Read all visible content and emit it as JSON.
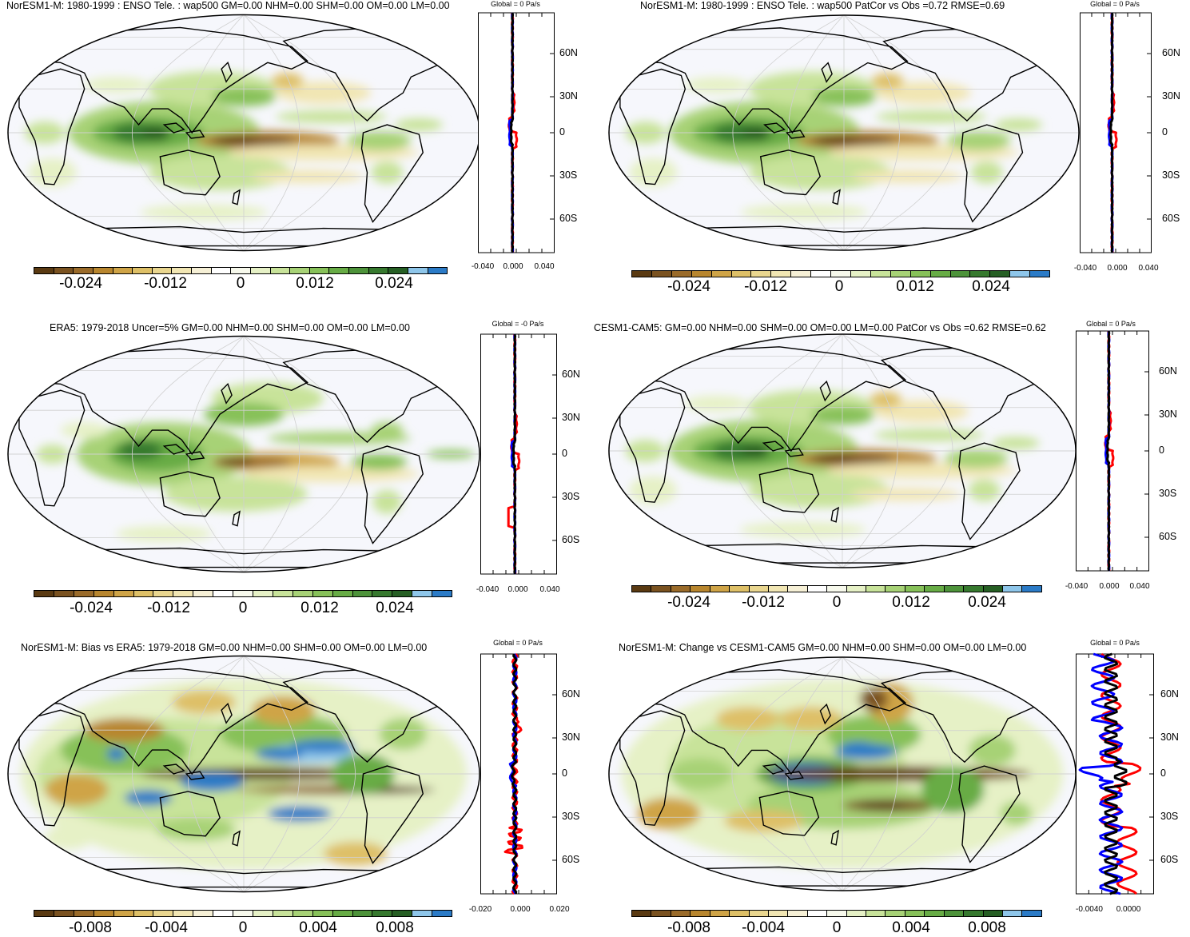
{
  "colors": {
    "palette": [
      "#5a3a12",
      "#7a5220",
      "#9a6b2a",
      "#b8862e",
      "#cfa447",
      "#dec067",
      "#e9d68f",
      "#f1e6b3",
      "#f6f0d6",
      "#ffffff",
      "#f7f9ec",
      "#e6f1c6",
      "#c8e39a",
      "#a7d276",
      "#87c159",
      "#67ac45",
      "#4d933a",
      "#36792e",
      "#265f24",
      "#8ec6ea",
      "#2b7bc7"
    ],
    "ocean": "#f6f7fc",
    "zonal_model": "#ff0000",
    "zonal_obs": "#0000ff",
    "zonal_diff": "#000000"
  },
  "panels": [
    {
      "id": "p1",
      "title": "NorESM1-M: 1980-1999 : ENSO Tele. : wap500 GM=0.00 NHM=0.00 SHM=0.00 OM=0.00 LM=0.00",
      "colorbar_labels": [
        "-0.024",
        "-0.012",
        "0",
        "0.012",
        "0.024"
      ],
      "zonal_title": "Global = 0 Pa/s",
      "zonal_lat_labels": [
        "60N",
        "30N",
        "0",
        "30S",
        "60S"
      ],
      "zonal_x_labels": [
        "-0.040",
        "0.000",
        "0.040"
      ],
      "style": "tele"
    },
    {
      "id": "p2",
      "title": "NorESM1-M: 1980-1999 : ENSO Tele. : wap500 PatCor vs Obs =0.72 RMSE=0.69",
      "colorbar_labels": [
        "-0.024",
        "-0.012",
        "0",
        "0.012",
        "0.024"
      ],
      "zonal_title": "Global = 0 Pa/s",
      "zonal_lat_labels": [
        "60N",
        "30N",
        "0",
        "30S",
        "60S"
      ],
      "zonal_x_labels": [
        "-0.040",
        "0.000",
        "0.040"
      ],
      "style": "tele"
    },
    {
      "id": "p3",
      "title": "ERA5: 1979-2018 Uncer=5% GM=0.00 NHM=0.00 SHM=0.00 OM=0.00 LM=0.00",
      "colorbar_labels": [
        "-0.024",
        "-0.012",
        "0",
        "0.012",
        "0.024"
      ],
      "zonal_title": "Global = -0 Pa/s",
      "zonal_lat_labels": [
        "60N",
        "30N",
        "0",
        "30S",
        "60S"
      ],
      "zonal_x_labels": [
        "-0.040",
        "0.000",
        "0.040"
      ],
      "style": "obs"
    },
    {
      "id": "p4",
      "title": "CESM1-CAM5: GM=0.00 NHM=0.00 SHM=0.00 OM=0.00 LM=0.00 PatCor vs Obs =0.62 RMSE=0.62",
      "colorbar_labels": [
        "-0.024",
        "-0.012",
        "0",
        "0.012",
        "0.024"
      ],
      "zonal_title": "Global = 0 Pa/s",
      "zonal_lat_labels": [
        "60N",
        "30N",
        "0",
        "30S",
        "60S"
      ],
      "zonal_x_labels": [
        "-0.040",
        "0.000",
        "0.040"
      ],
      "style": "tele"
    },
    {
      "id": "p5",
      "title": "NorESM1-M: Bias vs ERA5: 1979-2018 GM=0.00 NHM=0.00 SHM=0.00 OM=0.00 LM=0.00",
      "colorbar_labels": [
        "-0.008",
        "-0.004",
        "0",
        "0.004",
        "0.008"
      ],
      "zonal_title": "Global = 0 Pa/s",
      "zonal_lat_labels": [
        "60N",
        "30N",
        "0",
        "30S",
        "60S"
      ],
      "zonal_x_labels": [
        "-0.020",
        "0.000",
        "0.020"
      ],
      "style": "bias"
    },
    {
      "id": "p6",
      "title": "NorESM1-M: Change vs CESM1-CAM5 GM=0.00 NHM=0.00 SHM=0.00 OM=0.00 LM=0.00",
      "colorbar_labels": [
        "-0.008",
        "-0.004",
        "0",
        "0.004",
        "0.008"
      ],
      "zonal_title": "Global = 0 Pa/s",
      "zonal_lat_labels": [
        "60N",
        "30N",
        "0",
        "30S",
        "60S"
      ],
      "zonal_x_labels": [
        "-0.0040",
        "0.0000"
      ],
      "style": "change"
    }
  ]
}
